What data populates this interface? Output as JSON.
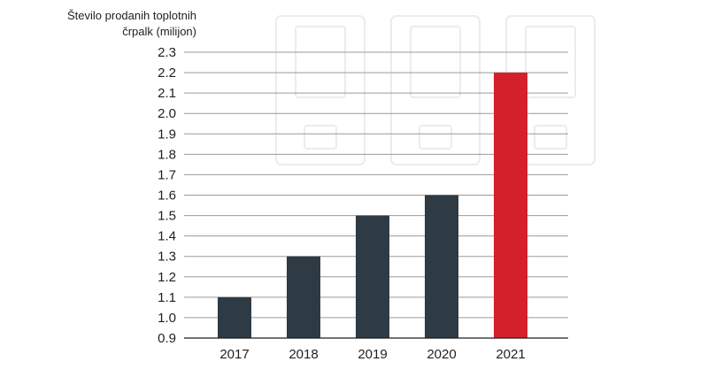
{
  "chart_data": {
    "type": "bar",
    "ylabel": "Število prodanih toplotnih črpalk (milijon)",
    "ylabel_lines": [
      "Število prodanih toplotnih",
      "črpalk (milijon)"
    ],
    "categories": [
      "2017",
      "2018",
      "2019",
      "2020",
      "2021"
    ],
    "values": [
      1.1,
      1.3,
      1.5,
      1.6,
      2.2
    ],
    "yticks": [
      "0.9",
      "1.0",
      "1.1",
      "1.2",
      "1.3",
      "1.4",
      "1.5",
      "1.6",
      "1.7",
      "1.8",
      "1.9",
      "2.0",
      "2.1",
      "2.2",
      "2.3"
    ],
    "ylim": [
      0.9,
      2.3
    ],
    "grid": true,
    "colors": {
      "bar": "#2e3a44",
      "highlight": "#d4202a",
      "grid": "#9a9a9a",
      "axis": "#1f1f1f"
    },
    "highlight_category": "2021"
  }
}
